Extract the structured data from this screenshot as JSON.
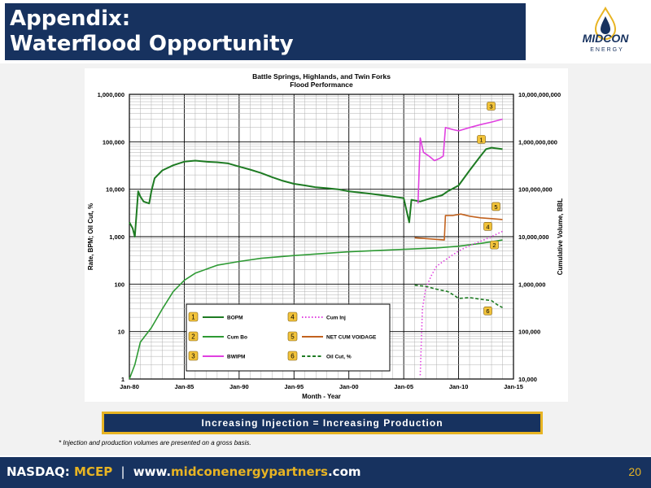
{
  "header": {
    "title_line1": "Appendix:",
    "title_line2": "Waterflood Opportunity"
  },
  "logo": {
    "text": "MIDCON",
    "subtext": "ENERGY"
  },
  "chart_data": {
    "type": "line",
    "title": "Battle Springs, Highlands, and Twin Forks",
    "subtitle": "Flood Performance",
    "xlabel": "Month - Year",
    "ylabel_left": "Rate, BPM; Oil Cut, %",
    "ylabel_right": "Cumulative Volume, BBL",
    "x_ticks": [
      "Jan-80",
      "Jan-85",
      "Jan-90",
      "Jan-95",
      "Jan-00",
      "Jan-05",
      "Jan-10",
      "Jan-15"
    ],
    "xlim": [
      1980,
      2015
    ],
    "y_left_ticks": [
      "1",
      "10",
      "100",
      "1,000",
      "10,000",
      "100,000",
      "1,000,000"
    ],
    "ylim_left": [
      1,
      1000000
    ],
    "y_right_ticks": [
      "10,000",
      "100,000",
      "1,000,000",
      "10,000,000",
      "100,000,000",
      "1,000,000,000",
      "10,000,000,000"
    ],
    "ylim_right": [
      10000,
      10000000000
    ],
    "y_scale": "log",
    "grid": true,
    "legend_placement": "bottom-center",
    "legend": [
      {
        "num": "1",
        "name": "BOPM",
        "color": "#1e7b23",
        "style": "solid"
      },
      {
        "num": "2",
        "name": "Cum Bo",
        "color": "#2e9a34",
        "style": "solid"
      },
      {
        "num": "3",
        "name": "BWIPM",
        "color": "#e040e0",
        "style": "solid"
      },
      {
        "num": "4",
        "name": "Cum Inj",
        "color": "#e040e0",
        "style": "dotted"
      },
      {
        "num": "5",
        "name": "NET CUM VOIDAGE",
        "color": "#c2621e",
        "style": "solid"
      },
      {
        "num": "6",
        "name": "Oil Cut, %",
        "color": "#1e7b23",
        "style": "dashed"
      }
    ],
    "series": [
      {
        "name": "BOPM",
        "axis": "left",
        "color": "#1e7b23",
        "points": [
          [
            1980.0,
            2000
          ],
          [
            1980.3,
            1500
          ],
          [
            1980.5,
            1000
          ],
          [
            1980.8,
            9000
          ],
          [
            1981.0,
            7000
          ],
          [
            1981.3,
            5500
          ],
          [
            1981.8,
            5000
          ],
          [
            1982.0,
            9000
          ],
          [
            1982.3,
            17000
          ],
          [
            1983.0,
            25000
          ],
          [
            1984.0,
            32000
          ],
          [
            1985.0,
            38000
          ],
          [
            1986.0,
            40000
          ],
          [
            1987.0,
            38000
          ],
          [
            1988.0,
            37000
          ],
          [
            1989.0,
            35000
          ],
          [
            1990.0,
            30000
          ],
          [
            1991.0,
            26000
          ],
          [
            1992.0,
            22000
          ],
          [
            1993.0,
            18000
          ],
          [
            1994.0,
            15000
          ],
          [
            1995.0,
            13000
          ],
          [
            1996.0,
            12000
          ],
          [
            1997.0,
            11000
          ],
          [
            1998.0,
            10500
          ],
          [
            1999.0,
            10000
          ],
          [
            2000.0,
            9000
          ],
          [
            2001.0,
            8500
          ],
          [
            2002.0,
            8000
          ],
          [
            2003.0,
            7500
          ],
          [
            2004.0,
            7000
          ],
          [
            2005.0,
            6500
          ],
          [
            2005.5,
            2000
          ],
          [
            2005.7,
            6000
          ],
          [
            2006.5,
            5500
          ],
          [
            2007.5,
            6500
          ],
          [
            2008.5,
            7500
          ],
          [
            2009.0,
            9000
          ],
          [
            2010.0,
            12000
          ],
          [
            2011.0,
            25000
          ],
          [
            2012.0,
            50000
          ],
          [
            2012.5,
            70000
          ],
          [
            2013.0,
            75000
          ],
          [
            2014.0,
            70000
          ]
        ]
      },
      {
        "name": "Cum Bo",
        "axis": "right",
        "color": "#2e9a34",
        "points": [
          [
            1980.0,
            10000
          ],
          [
            1980.5,
            20000
          ],
          [
            1981.0,
            60000
          ],
          [
            1982.0,
            120000
          ],
          [
            1983.0,
            300000
          ],
          [
            1984.0,
            700000
          ],
          [
            1985.0,
            1200000
          ],
          [
            1986.0,
            1700000
          ],
          [
            1988.0,
            2500000
          ],
          [
            1990.0,
            3000000
          ],
          [
            1992.0,
            3500000
          ],
          [
            1995.0,
            4000000
          ],
          [
            2000.0,
            4800000
          ],
          [
            2005.0,
            5400000
          ],
          [
            2008.0,
            5800000
          ],
          [
            2010.0,
            6300000
          ],
          [
            2012.0,
            7200000
          ],
          [
            2014.0,
            8500000
          ]
        ]
      },
      {
        "name": "BWIPM",
        "axis": "left",
        "color": "#e040e0",
        "points": [
          [
            2006.3,
            5000
          ],
          [
            2006.5,
            120000
          ],
          [
            2006.8,
            60000
          ],
          [
            2007.3,
            50000
          ],
          [
            2007.8,
            40000
          ],
          [
            2008.3,
            45000
          ],
          [
            2008.6,
            50000
          ],
          [
            2008.8,
            200000
          ],
          [
            2009.5,
            180000
          ],
          [
            2010.0,
            170000
          ],
          [
            2011.0,
            200000
          ],
          [
            2012.0,
            230000
          ],
          [
            2013.0,
            260000
          ],
          [
            2014.0,
            300000
          ]
        ]
      },
      {
        "name": "Cum Inj",
        "axis": "right",
        "color": "#e040e0",
        "points": [
          [
            2006.5,
            12000
          ],
          [
            2006.7,
            300000
          ],
          [
            2007.0,
            800000
          ],
          [
            2007.5,
            1500000
          ],
          [
            2008.0,
            2400000
          ],
          [
            2009.0,
            3500000
          ],
          [
            2010.0,
            5000000
          ],
          [
            2011.0,
            6500000
          ],
          [
            2012.0,
            8000000
          ],
          [
            2013.0,
            10000000
          ],
          [
            2014.0,
            13000000
          ]
        ]
      },
      {
        "name": "NET CUM VOIDAGE",
        "axis": "right",
        "color": "#c2621e",
        "points": [
          [
            2006.0,
            9500000
          ],
          [
            2008.7,
            8500000
          ],
          [
            2008.8,
            28000000
          ],
          [
            2009.5,
            28000000
          ],
          [
            2010.2,
            30000000
          ],
          [
            2011.0,
            27000000
          ],
          [
            2012.0,
            25000000
          ],
          [
            2013.0,
            24000000
          ],
          [
            2014.0,
            23000000
          ]
        ]
      },
      {
        "name": "Oil Cut, %",
        "axis": "left",
        "color": "#1e7b23",
        "points": [
          [
            2006.0,
            95
          ],
          [
            2007.0,
            90
          ],
          [
            2008.0,
            78
          ],
          [
            2009.0,
            70
          ],
          [
            2009.5,
            60
          ],
          [
            2010.0,
            50
          ],
          [
            2011.0,
            52
          ],
          [
            2012.0,
            48
          ],
          [
            2013.0,
            45
          ],
          [
            2013.5,
            37
          ],
          [
            2014.0,
            32
          ]
        ]
      }
    ],
    "callouts": [
      {
        "num": "1",
        "series": "BOPM"
      },
      {
        "num": "2",
        "series": "Cum Bo"
      },
      {
        "num": "3",
        "series": "BWIPM"
      },
      {
        "num": "4",
        "series": "Cum Inj"
      },
      {
        "num": "5",
        "series": "NET CUM VOIDAGE"
      },
      {
        "num": "6",
        "series": "Oil Cut, %"
      }
    ]
  },
  "banner": {
    "text": "Increasing Injection = Increasing Production"
  },
  "footnote": "* Injection and production volumes are presented on a gross basis.",
  "footer": {
    "nasdaq_label": "NASDAQ:",
    "ticker": "MCEP",
    "url_prefix": "www.",
    "url_brand": "midconenergypartners",
    "url_suffix": ".com",
    "page_number": "20"
  },
  "colors": {
    "navy": "#17325f",
    "gold": "#e8b423",
    "gray_bg": "#f2f2f2"
  }
}
